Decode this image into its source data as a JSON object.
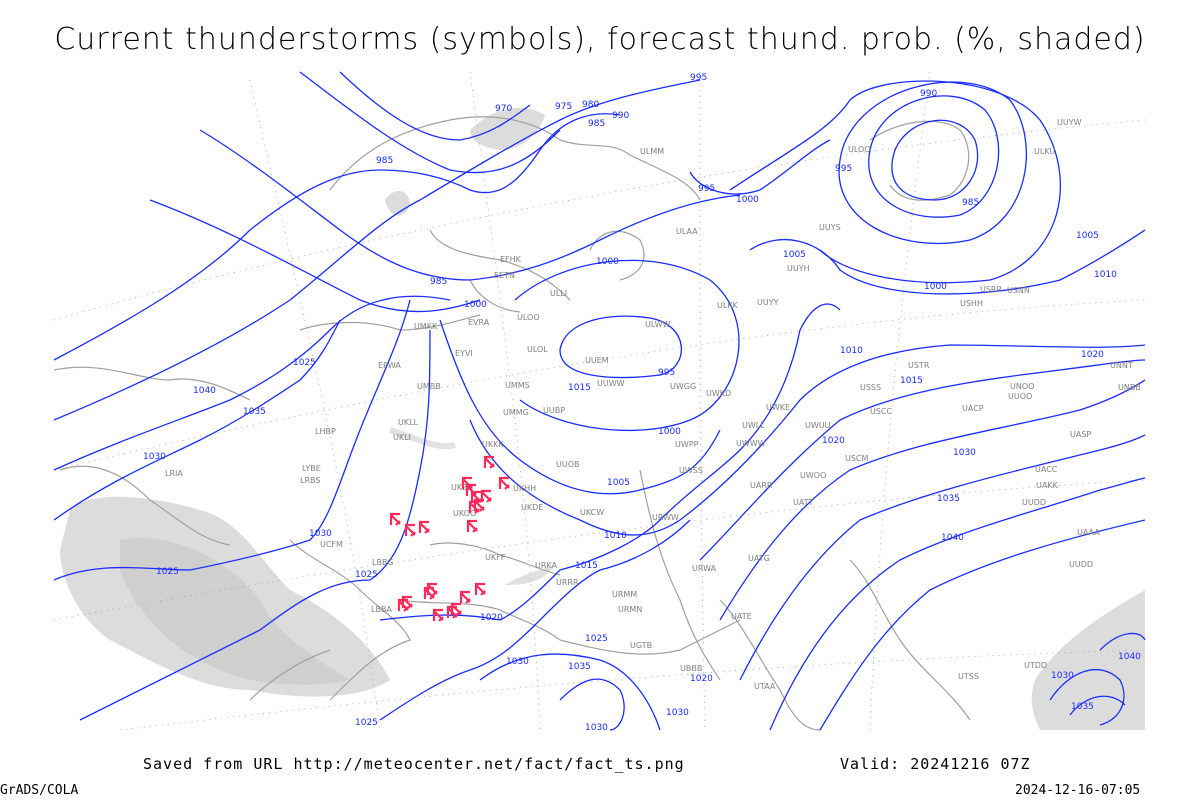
{
  "title": "Current thunderstorms (symbols), forecast thund. prob. (%, shaded)",
  "footer": {
    "saved_from": "Saved from URL http://meteocenter.net/fact/fact_ts.png",
    "valid": "Valid: 20241216 07Z",
    "software": "GrADS/COLA",
    "timestamp": "2024-12-16-07:05"
  },
  "colors": {
    "isobar": "#1a2cff",
    "thunderstorm_symbol": "#ff2a5a",
    "coastline": "#a0a0a0",
    "probability_shading": "#d8d8d8"
  },
  "isobar_labels": [
    "970",
    "975",
    "980",
    "985",
    "990",
    "995",
    "985",
    "995",
    "1000",
    "995",
    "990",
    "985",
    "1005",
    "1010",
    "1005",
    "1000",
    "1000",
    "985",
    "1000",
    "995",
    "1000",
    "1005",
    "1010",
    "1015",
    "1010",
    "1015",
    "1020",
    "1020",
    "1030",
    "1035",
    "1040",
    "1040",
    "1035",
    "1030",
    "1025",
    "1030",
    "1025",
    "1025",
    "1020",
    "1030",
    "1035",
    "1025",
    "1030",
    "1030",
    "1020",
    "1025",
    "1030",
    "1035",
    "1040",
    "1015"
  ],
  "station_labels": [
    "ULMM",
    "ULOO",
    "ULAA",
    "EFHK",
    "EETN",
    "ULLI",
    "EVRA",
    "ULOO",
    "ULOL",
    "UUEM",
    "ULWW",
    "ULKK",
    "UUYY",
    "UUYH",
    "UUYS",
    "USSS",
    "USRR",
    "USNN",
    "USHH",
    "USTR",
    "USCC",
    "USCM",
    "UACC",
    "UAKK",
    "UUOO",
    "UUDD",
    "UWWW",
    "UWPP",
    "UUWW",
    "UWGG",
    "UMMG",
    "UUBP",
    "UMMS",
    "UMKK",
    "EYVI",
    "EPWA",
    "UMBB",
    "UKLL",
    "UKLI",
    "LHBP",
    "LRBS",
    "LBBG",
    "UKKK",
    "UKOO",
    "UKFF",
    "URKA",
    "URRR",
    "URMM",
    "URMN",
    "UGTB",
    "UBBB",
    "UATG",
    "UATE",
    "UTAA",
    "UAAA",
    "UCFM",
    "UTSS",
    "UTDD",
    "UKHH",
    "UKDE",
    "UKCW",
    "UUOB",
    "URWA",
    "UATT",
    "UARR",
    "UWOO",
    "UWUU",
    "UWKE",
    "UWLL",
    "UWSS",
    "UWKD",
    "UNNT",
    "UNBB",
    "UACP",
    "UNOO",
    "UASP",
    "UUYW",
    "ULKU",
    "LBBA",
    "LRIA",
    "UKBB",
    "URWW",
    "UUDD",
    "LYBE"
  ]
}
